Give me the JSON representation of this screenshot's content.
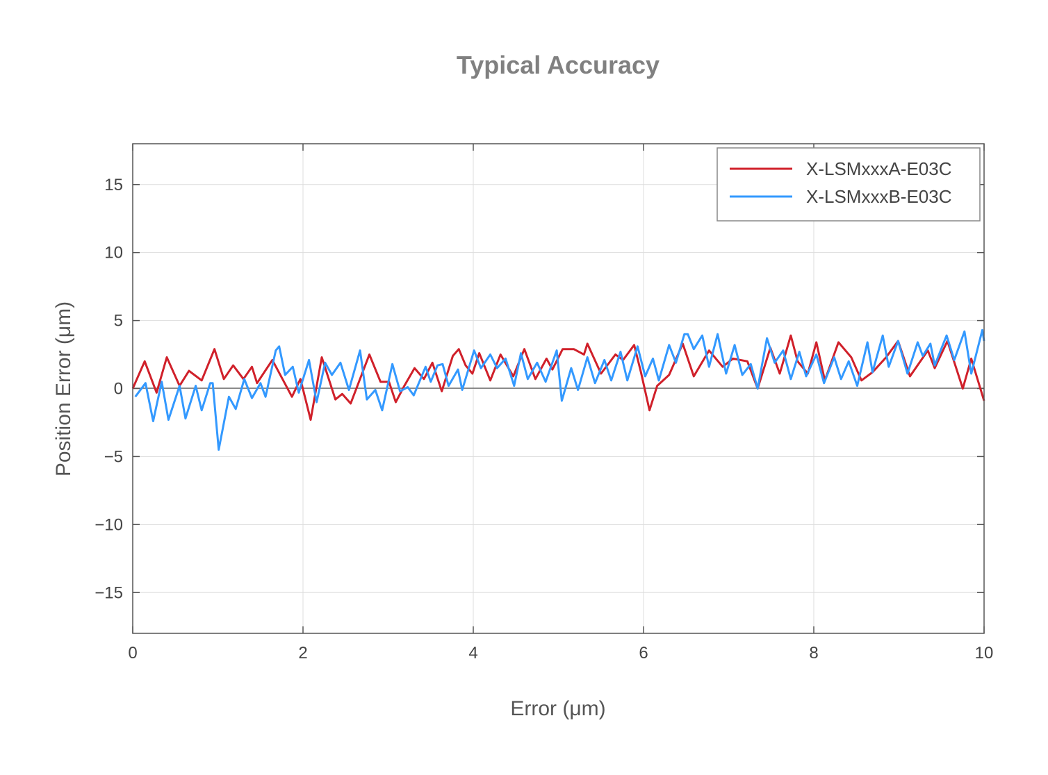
{
  "chart_data": {
    "type": "line",
    "title": "Typical Accuracy",
    "xlabel": "Error (μm)",
    "ylabel": "Position Error (μm)",
    "xlim": [
      0,
      10
    ],
    "ylim": [
      -18,
      18
    ],
    "xticks": [
      0,
      2,
      4,
      6,
      8,
      10
    ],
    "yticks": [
      -15,
      -10,
      -5,
      0,
      5,
      10,
      15
    ],
    "ytick_labels": [
      "−15",
      "−10",
      "−5",
      "0",
      "5",
      "10",
      "15"
    ],
    "grid": true,
    "legend_position": "top-right",
    "series": [
      {
        "name": "X-LSMxxxA-E03C",
        "color": "#d0202a",
        "x": [
          0,
          0.14,
          0.28,
          0.4,
          0.55,
          0.66,
          0.81,
          0.96,
          1.07,
          1.18,
          1.3,
          1.4,
          1.46,
          1.64,
          1.87,
          1.97,
          2.09,
          2.22,
          2.38,
          2.46,
          2.56,
          2.78,
          2.91,
          3.01,
          3.09,
          3.19,
          3.31,
          3.42,
          3.52,
          3.63,
          3.76,
          3.83,
          3.91,
          3.99,
          4.07,
          4.2,
          4.32,
          4.47,
          4.6,
          4.73,
          4.86,
          4.93,
          5.05,
          5.18,
          5.3,
          5.34,
          5.5,
          5.67,
          5.76,
          5.89,
          5.97,
          6.07,
          6.16,
          6.3,
          6.46,
          6.59,
          6.77,
          6.93,
          7.05,
          7.22,
          7.34,
          7.49,
          7.6,
          7.73,
          7.81,
          7.93,
          8.03,
          8.13,
          8.29,
          8.44,
          8.56,
          8.69,
          8.85,
          8.99,
          9.13,
          9.34,
          9.42,
          9.57,
          9.75,
          9.85,
          10
        ],
        "y": [
          0,
          2.0,
          -0.3,
          2.3,
          0.2,
          1.3,
          0.6,
          2.9,
          0.7,
          1.7,
          0.7,
          1.6,
          0.4,
          2.1,
          -0.6,
          0.7,
          -2.3,
          2.3,
          -0.8,
          -0.4,
          -1.1,
          2.5,
          0.5,
          0.5,
          -1.0,
          0.2,
          1.5,
          0.7,
          1.9,
          -0.2,
          2.4,
          2.9,
          1.7,
          1.1,
          2.6,
          0.6,
          2.5,
          0.9,
          2.9,
          0.7,
          2.2,
          1.4,
          2.9,
          2.9,
          2.5,
          3.3,
          1.1,
          2.5,
          2.1,
          3.2,
          1.2,
          -1.6,
          0.2,
          1.0,
          3.3,
          0.9,
          2.8,
          1.6,
          2.2,
          2.0,
          0.0,
          3.0,
          1.1,
          3.9,
          2.0,
          1.1,
          3.4,
          0.6,
          3.4,
          2.3,
          0.6,
          1.2,
          2.3,
          3.5,
          0.9,
          2.8,
          1.5,
          3.5,
          0.0,
          2.2,
          -0.9
        ]
      },
      {
        "name": "X-LSMxxxB-E03C",
        "color": "#3399ff",
        "x": [
          0.03,
          0.15,
          0.24,
          0.34,
          0.42,
          0.55,
          0.62,
          0.74,
          0.81,
          0.91,
          0.94,
          1.01,
          1.13,
          1.21,
          1.31,
          1.4,
          1.5,
          1.56,
          1.68,
          1.72,
          1.79,
          1.88,
          1.95,
          2.07,
          2.16,
          2.26,
          2.34,
          2.44,
          2.54,
          2.67,
          2.75,
          2.85,
          2.93,
          3.05,
          3.14,
          3.23,
          3.3,
          3.44,
          3.5,
          3.58,
          3.64,
          3.71,
          3.82,
          3.87,
          4.01,
          4.09,
          4.2,
          4.28,
          4.38,
          4.48,
          4.56,
          4.64,
          4.75,
          4.85,
          4.98,
          5.04,
          5.15,
          5.23,
          5.34,
          5.43,
          5.54,
          5.62,
          5.73,
          5.81,
          5.93,
          6.02,
          6.11,
          6.18,
          6.3,
          6.38,
          6.48,
          6.52,
          6.59,
          6.69,
          6.77,
          6.87,
          6.97,
          7.07,
          7.16,
          7.26,
          7.34,
          7.45,
          7.54,
          7.64,
          7.73,
          7.83,
          7.91,
          8.03,
          8.12,
          8.24,
          8.32,
          8.41,
          8.51,
          8.63,
          8.69,
          8.81,
          8.88,
          8.99,
          9.1,
          9.22,
          9.28,
          9.37,
          9.42,
          9.56,
          9.65,
          9.77,
          9.85,
          9.98,
          10
        ],
        "y": [
          -0.6,
          0.4,
          -2.4,
          0.5,
          -2.3,
          0.2,
          -2.2,
          0.2,
          -1.6,
          0.4,
          0.4,
          -4.5,
          -0.6,
          -1.5,
          0.7,
          -0.7,
          0.4,
          -0.6,
          2.8,
          3.1,
          1.0,
          1.6,
          -0.3,
          2.1,
          -1.0,
          1.9,
          1.0,
          1.9,
          -0.1,
          2.8,
          -0.8,
          -0.1,
          -1.6,
          1.8,
          -0.2,
          0.1,
          -0.5,
          1.6,
          0.5,
          1.7,
          1.8,
          0.2,
          1.4,
          -0.1,
          2.8,
          1.5,
          2.5,
          1.5,
          2.2,
          0.2,
          2.6,
          0.7,
          1.9,
          0.5,
          2.8,
          -0.9,
          1.5,
          -0.1,
          2.3,
          0.4,
          2.1,
          0.6,
          2.7,
          0.6,
          3.1,
          0.9,
          2.2,
          0.6,
          3.2,
          1.9,
          4.0,
          4.0,
          2.9,
          3.9,
          1.6,
          4.0,
          1.1,
          3.2,
          1.0,
          1.8,
          0.0,
          3.7,
          1.9,
          2.8,
          0.7,
          2.7,
          0.9,
          2.5,
          0.4,
          2.3,
          0.7,
          2.0,
          0.2,
          3.4,
          1.2,
          3.9,
          1.6,
          3.5,
          1.1,
          3.4,
          2.4,
          3.3,
          1.7,
          3.9,
          2.1,
          4.2,
          1.1,
          4.3,
          3.5
        ]
      }
    ]
  }
}
